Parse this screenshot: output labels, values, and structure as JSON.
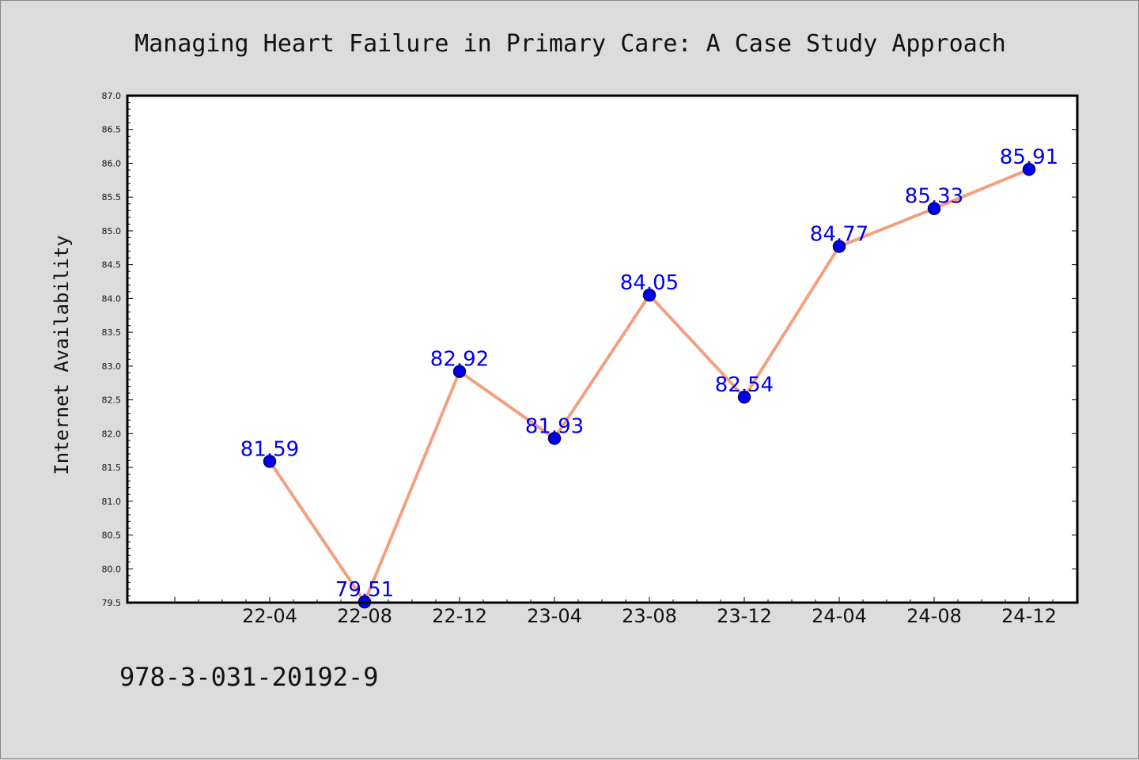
{
  "chart_data": {
    "type": "line",
    "title": "Managing Heart Failure in Primary Care: A Case Study Approach",
    "xlabel": "",
    "ylabel": "Internet Availability",
    "categories": [
      "22-04",
      "22-08",
      "22-12",
      "23-04",
      "23-08",
      "23-12",
      "24-04",
      "24-08",
      "24-12"
    ],
    "series": [
      {
        "values": [
          81.59,
          79.51,
          82.92,
          81.93,
          84.05,
          82.54,
          84.77,
          85.33,
          85.91
        ],
        "labels": [
          "81.59",
          "79.51",
          "82.92",
          "81.93",
          "84.05",
          "82.54",
          "84.77",
          "85.33",
          "85.91"
        ],
        "line_color": "#f4a07f",
        "marker_color": "#0000ee",
        "marker_edge": "#000066"
      }
    ],
    "ylim": [
      79.5,
      87.0
    ],
    "yticks": [
      "79.5",
      "80.0",
      "80.5",
      "81.0",
      "81.5",
      "82.0",
      "82.5",
      "83.0",
      "83.5",
      "84.0",
      "84.5",
      "85.0",
      "85.5",
      "86.0",
      "86.5",
      "87.0"
    ],
    "label_color": "#0000ee",
    "grid": false,
    "legend": "none"
  },
  "footer": {
    "isbn": "978-3-031-20192-9"
  }
}
